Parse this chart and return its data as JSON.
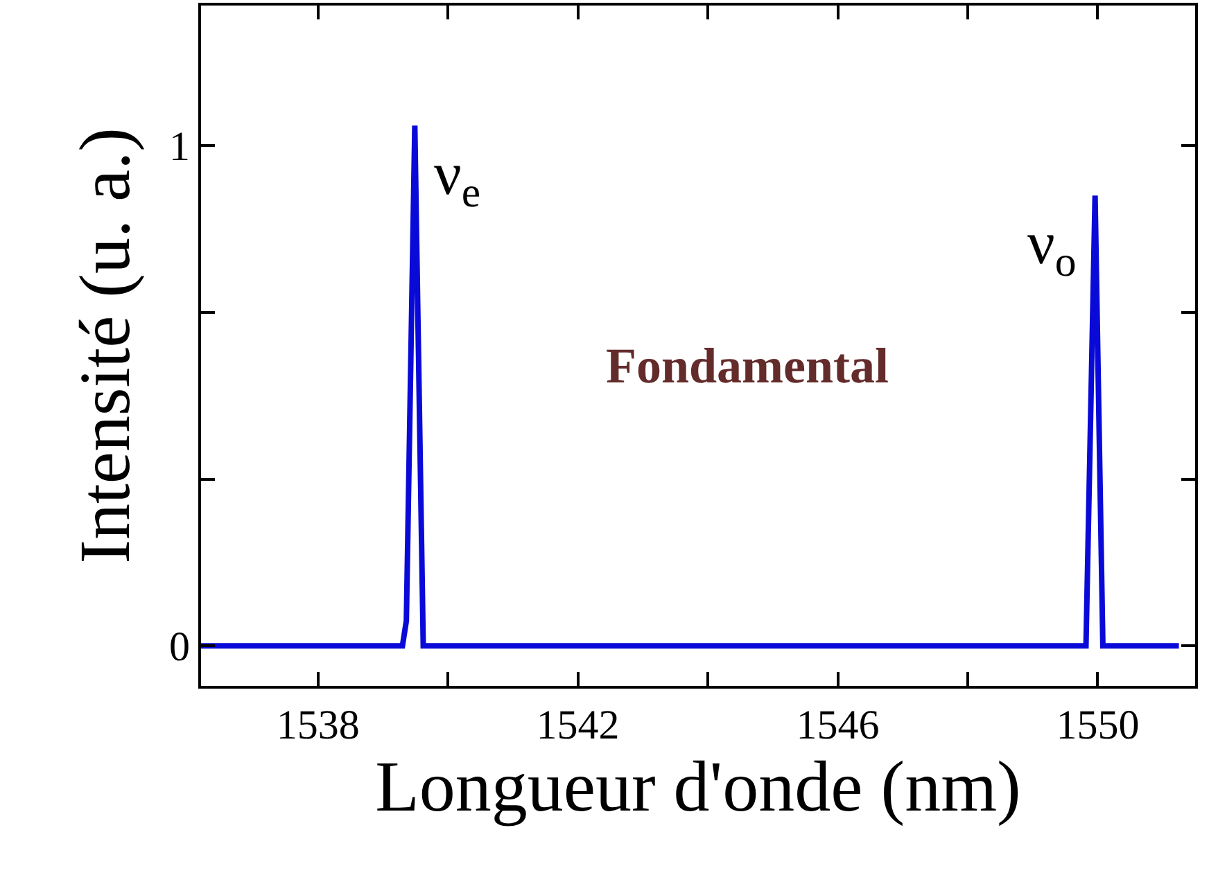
{
  "chart_data": {
    "type": "line",
    "xlabel": "Longueur d'onde (nm)",
    "ylabel": "Intensité (u. a.)",
    "x": [
      1536.2,
      1539.3,
      1539.36,
      1539.49,
      1539.62,
      1549.82,
      1549.96,
      1550.08,
      1551.25
    ],
    "series": [
      {
        "color": "#0a0ad8",
        "values": [
          0,
          0,
          0.05,
          1.04,
          0,
          0,
          0.9,
          0,
          0
        ]
      }
    ],
    "xlim": [
      1536.2,
      1551.5
    ],
    "ylim": [
      -0.08,
      1.28
    ],
    "xticks": [
      1538,
      {
        "value": 1540,
        "label": null
      },
      1542,
      {
        "value": 1544,
        "label": null
      },
      1546,
      {
        "value": 1548,
        "label": null
      },
      1550
    ],
    "yticks": [
      0,
      {
        "value": 0.333,
        "label": null
      },
      {
        "value": 0.667,
        "label": null
      },
      1
    ],
    "annotations": [
      {
        "text": "ν$_{e}$",
        "x": 1539.49,
        "y": 1.04
      },
      {
        "text": "ν$_{o}$",
        "x": 1549.96,
        "y": 0.9
      },
      "Fondamental"
    ],
    "marker": "none",
    "line_style": "solid"
  }
}
